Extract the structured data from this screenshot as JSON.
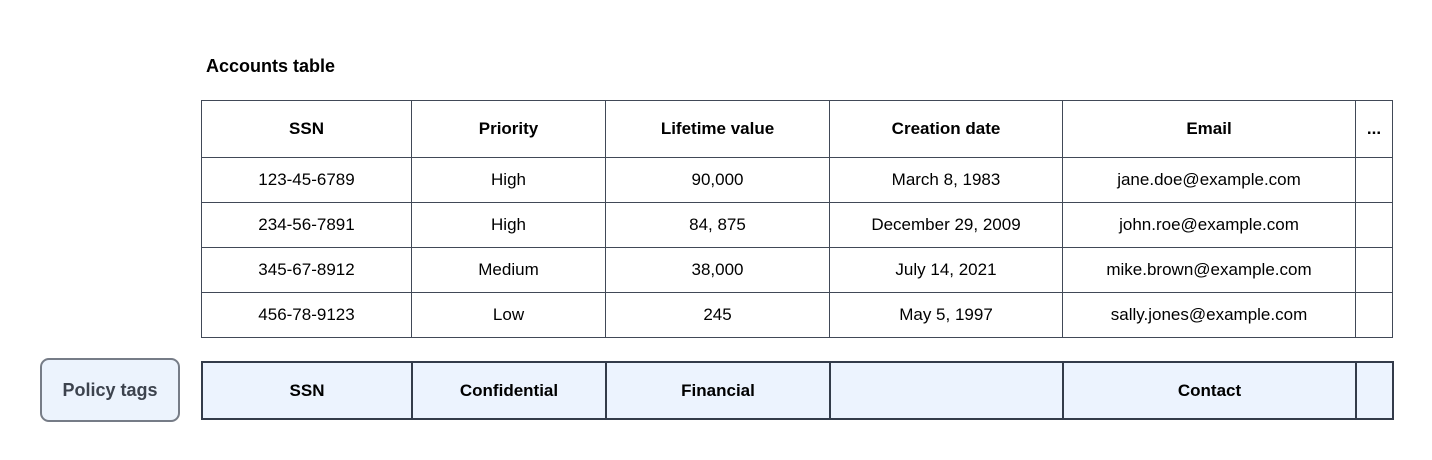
{
  "title": "Accounts table",
  "table": {
    "columns": [
      "SSN",
      "Priority",
      "Lifetime value",
      "Creation date",
      "Email",
      "..."
    ],
    "rows": [
      [
        "123-45-6789",
        "High",
        "90,000",
        "March 8, 1983",
        "jane.doe@example.com",
        ""
      ],
      [
        "234-56-7891",
        "High",
        "84, 875",
        "December 29, 2009",
        "john.roe@example.com",
        ""
      ],
      [
        "345-67-8912",
        "Medium",
        "38,000",
        "July 14, 2021",
        "mike.brown@example.com",
        ""
      ],
      [
        "456-78-9123",
        "Low",
        "245",
        "May 5, 1997",
        "sally.jones@example.com",
        ""
      ]
    ]
  },
  "policy": {
    "label": "Policy tags",
    "tags": [
      "SSN",
      "Confidential",
      "Financial",
      "",
      "Contact",
      ""
    ]
  },
  "colors": {
    "table_border": "#414957",
    "policy_cell_fill": "#ecf3fe",
    "policy_cell_border": "#333b4a",
    "policy_label_fill": "#ecf3fd",
    "policy_label_border": "#767c87",
    "policy_label_text": "#3d434e"
  }
}
